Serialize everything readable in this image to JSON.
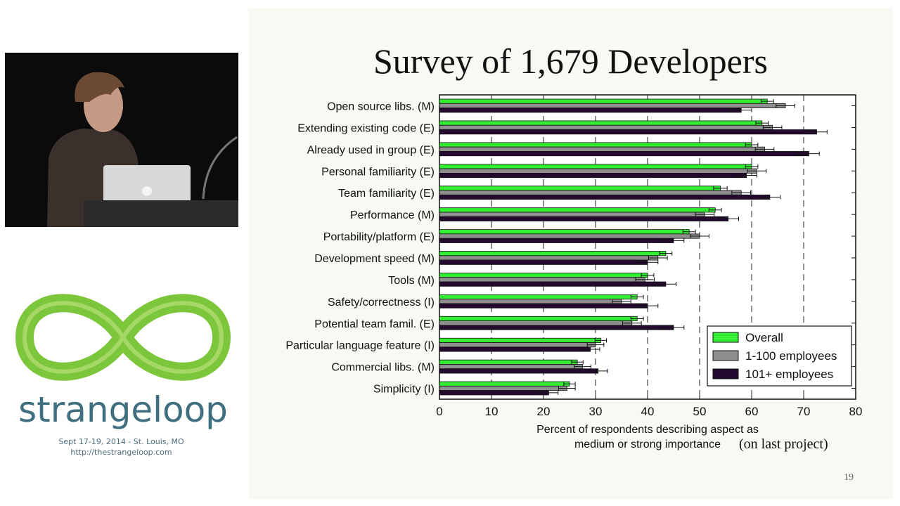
{
  "slide": {
    "title": "Survey of 1,679 Developers",
    "subtitle": "(on last project)",
    "page_number": "19"
  },
  "conference": {
    "name": "strangeloop",
    "line1": "Sept 17-19, 2014  -  St. Louis, MO",
    "line2": "http://thestrangeloop.com",
    "colors": {
      "green": "#7cc63b",
      "teal": "#3f6f7e"
    }
  },
  "chart_data": {
    "type": "bar",
    "orientation": "horizontal",
    "title": "",
    "xlabel": "Percent of respondents describing aspect as medium or strong importance",
    "xlabel_lines": [
      "Percent of respondents describing aspect as",
      "medium or strong importance"
    ],
    "xlim": [
      0,
      80
    ],
    "xticks": [
      0,
      10,
      20,
      30,
      40,
      50,
      60,
      70,
      80
    ],
    "gridlines": "vertical-dashed",
    "legend_position": "bottom-right",
    "categories": [
      "Open source libs. (M)",
      "Extending existing code (E)",
      "Already used in group (E)",
      "Personal familiarity (E)",
      "Team familiarity (E)",
      "Performance (M)",
      "Portability/platform (E)",
      "Development speed (M)",
      "Tools (M)",
      "Safety/correctness (I)",
      "Potential team famil. (E)",
      "Particular language feature (I)",
      "Commercial libs. (M)",
      "Simplicity (I)"
    ],
    "series": [
      {
        "name": "Overall",
        "color": "#33ee33",
        "values": [
          63,
          62,
          60,
          60,
          54,
          53,
          48,
          43.5,
          40,
          38,
          38,
          31,
          26.5,
          25
        ],
        "errors": [
          1.2,
          1.2,
          1.2,
          1.2,
          1.3,
          1.2,
          1.2,
          1.2,
          1.2,
          1.2,
          1.2,
          1.1,
          1.1,
          1.1
        ]
      },
      {
        "name": "1-100 employees",
        "color": "#8e8e8e",
        "values": [
          66.5,
          64,
          62.5,
          61,
          58,
          51,
          50,
          42,
          39.5,
          35,
          37,
          30,
          27.5,
          24.5
        ],
        "errors": [
          1.8,
          1.8,
          1.8,
          1.8,
          1.8,
          1.8,
          1.8,
          1.8,
          1.8,
          1.8,
          1.8,
          1.6,
          1.6,
          1.6
        ]
      },
      {
        "name": "101+ employees",
        "color": "#240a2e",
        "values": [
          58,
          72.5,
          71,
          59,
          63.5,
          55.5,
          45,
          40,
          43.5,
          40,
          45,
          29,
          30.5,
          21
        ],
        "errors": [
          2,
          2,
          2,
          2,
          2,
          2,
          2,
          2,
          2,
          2,
          2,
          1.8,
          1.8,
          1.8
        ]
      }
    ]
  }
}
